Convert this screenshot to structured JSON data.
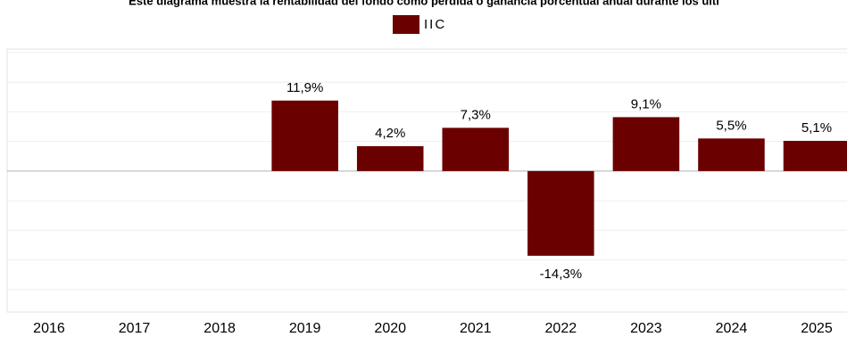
{
  "chart_data": {
    "type": "bar",
    "title": "Este diagrama muestra la rentabilidad del fondo como pérdida o ganancia porcentual anual durante los últi",
    "categories": [
      "2016",
      "2017",
      "2018",
      "2019",
      "2020",
      "2021",
      "2022",
      "2023",
      "2024",
      "2025"
    ],
    "series": [
      {
        "name": "IIC",
        "color": "#6b0000",
        "values": [
          null,
          null,
          null,
          11.9,
          4.2,
          7.3,
          -14.3,
          9.1,
          5.5,
          5.1
        ],
        "value_labels": [
          null,
          null,
          null,
          "11,9%",
          "4,2%",
          "7,3%",
          "-14,3%",
          "9,1%",
          "5,5%",
          "5,1%"
        ]
      }
    ],
    "ylim": [
      -23.8,
      20.6
    ],
    "yticks": [
      -20,
      -15,
      -10,
      -5,
      0,
      5,
      10,
      15,
      20
    ],
    "grid": true
  }
}
